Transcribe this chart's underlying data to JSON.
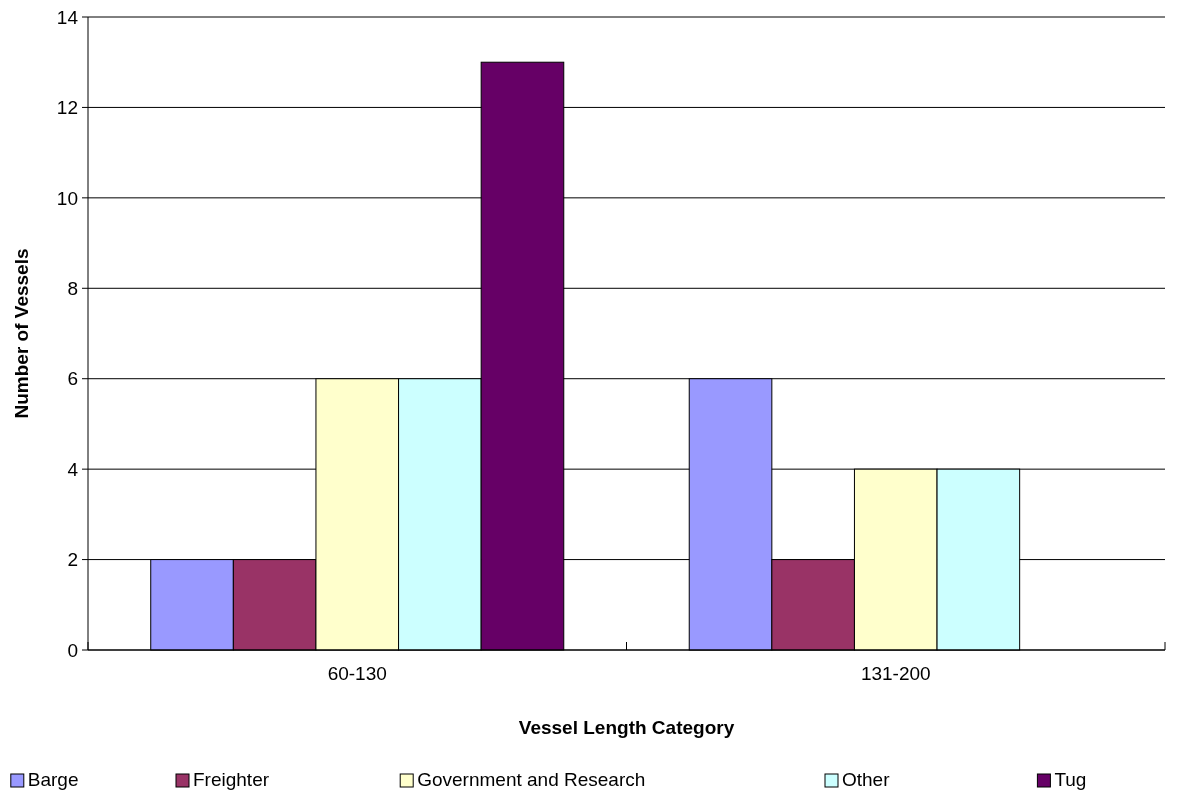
{
  "chart_data": {
    "type": "bar",
    "xlabel": "Vessel Length Category",
    "ylabel": "Number of Vessels",
    "categories": [
      "60-130",
      "131-200"
    ],
    "series": [
      {
        "name": "Barge",
        "color": "#9999ff",
        "values": [
          2,
          6
        ]
      },
      {
        "name": "Freighter",
        "color": "#993366",
        "values": [
          2,
          2
        ]
      },
      {
        "name": "Government and Research",
        "color": "#ffffcc",
        "values": [
          6,
          4
        ]
      },
      {
        "name": "Other",
        "color": "#ccffff",
        "values": [
          6,
          4
        ]
      },
      {
        "name": "Tug",
        "color": "#660066",
        "values": [
          13,
          0
        ]
      }
    ],
    "ylim": [
      0,
      14
    ],
    "yticks": [
      0,
      2,
      4,
      6,
      8,
      10,
      12,
      14
    ],
    "grid": "y",
    "legend": "bottom"
  }
}
